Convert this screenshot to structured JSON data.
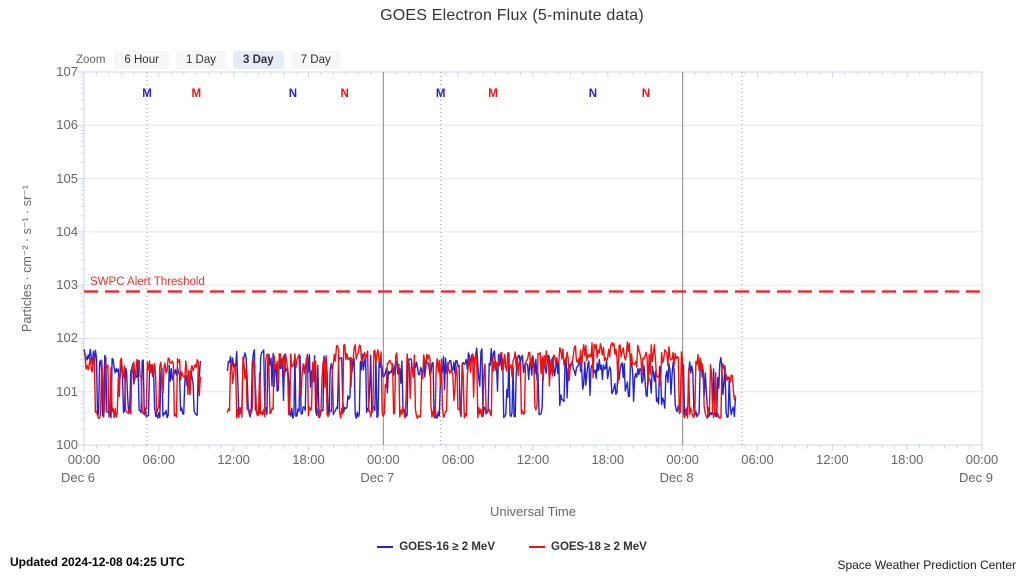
{
  "title": "GOES Electron Flux (5-minute data)",
  "toolbar": {
    "zoom_label": "Zoom",
    "buttons": [
      {
        "label": "6 Hour",
        "selected": false
      },
      {
        "label": "1 Day",
        "selected": false
      },
      {
        "label": "3 Day",
        "selected": true
      },
      {
        "label": "7 Day",
        "selected": false
      }
    ]
  },
  "y_axis": {
    "title": "Particles · cm⁻² · s⁻¹ · sr⁻¹",
    "tick_labels": [
      "107",
      "106",
      "105",
      "104",
      "103",
      "102",
      "101",
      "100"
    ]
  },
  "x_axis": {
    "title": "Universal Time",
    "tick_labels": [
      "00:00",
      "06:00",
      "12:00",
      "18:00",
      "00:00",
      "06:00",
      "12:00",
      "18:00",
      "00:00",
      "06:00",
      "12:00",
      "18:00",
      "00:00"
    ],
    "date_labels": [
      "Dec 6",
      "",
      "",
      "",
      "Dec 7",
      "",
      "",
      "",
      "Dec 8",
      "",
      "",
      "",
      "Dec 9"
    ]
  },
  "threshold": {
    "label": "SWPC Alert Threshold",
    "log_value": 2.88,
    "color": "#e83232"
  },
  "markers": [
    {
      "letter": "M",
      "color": "#2424cf",
      "hour": 5.05,
      "dotted_line": true
    },
    {
      "letter": "M",
      "color": "#ea1212",
      "hour": 9.0,
      "dotted_line": false
    },
    {
      "letter": "N",
      "color": "#2424cf",
      "hour": 16.75,
      "dotted_line": false
    },
    {
      "letter": "N",
      "color": "#ea1212",
      "hour": 20.9,
      "dotted_line": false
    },
    {
      "letter": "M",
      "color": "#2424cf",
      "hour": 28.6,
      "dotted_line": true
    },
    {
      "letter": "M",
      "color": "#ea1212",
      "hour": 32.8,
      "dotted_line": false
    },
    {
      "letter": "N",
      "color": "#2424cf",
      "hour": 40.8,
      "dotted_line": false
    },
    {
      "letter": "N",
      "color": "#ea1212",
      "hour": 45.05,
      "dotted_line": false
    }
  ],
  "legend": [
    {
      "label": "GOES-16 ≥ 2 MeV",
      "color": "#2424cf"
    },
    {
      "label": "GOES-18 ≥ 2 MeV",
      "color": "#ea1212"
    }
  ],
  "footer": {
    "updated": "Updated 2024-12-08 04:25 UTC",
    "credit": "Space Weather Prediction Center"
  },
  "chart_data": {
    "type": "line",
    "title": "GOES Electron Flux (5-minute data)",
    "xlabel": "Universal Time",
    "ylabel": "Particles · cm⁻² · s⁻¹ · sr⁻¹",
    "x_unit": "hours since Dec 6 00:00 UT",
    "x_range": [
      0,
      72
    ],
    "y_scale": "log10",
    "y_range_log": [
      0,
      7
    ],
    "grid": "horizontal-decades",
    "legend_position": "bottom-center",
    "data_end_hour": 52.3,
    "gap_hours": [
      9.35,
      11.45
    ],
    "day_plotlines_hours": [
      24,
      48
    ],
    "dotted_plotlines_hours": [
      5.05,
      28.6,
      52.75
    ],
    "floor_log10": 0.5,
    "sample_step_hours": 0.0833,
    "seed": 1337,
    "threshold_log": 2.88,
    "series": [
      {
        "name": "GOES-16 ≥ 2 MeV",
        "color": "#2424cf",
        "anchor_step_hours": 2,
        "upper_envelope_log10": [
          1.95,
          1.78,
          1.7,
          1.66,
          1.62,
          1.7,
          1.85,
          1.9,
          1.78,
          1.82,
          1.76,
          1.82,
          1.76,
          1.7,
          1.74,
          1.8,
          1.94,
          1.82,
          1.76,
          1.8,
          1.72,
          1.68,
          1.62,
          1.58,
          1.7,
          1.74,
          1.7
        ],
        "lower_envelope_log10": [
          0.5,
          0.5,
          0.5,
          0.5,
          0.5,
          0.5,
          0.5,
          0.5,
          0.5,
          0.5,
          0.5,
          0.5,
          0.5,
          0.5,
          0.5,
          0.5,
          0.5,
          0.5,
          0.5,
          0.7,
          1.0,
          0.95,
          0.9,
          0.75,
          0.5,
          0.5,
          0.5
        ],
        "dip_probability": [
          0.14,
          0.16,
          0.15,
          0.14,
          0.14,
          0.13,
          0.12,
          0.11,
          0.12,
          0.11,
          0.12,
          0.11,
          0.13,
          0.14,
          0.13,
          0.12,
          0.1,
          0.11,
          0.1,
          0.09,
          0.08,
          0.08,
          0.09,
          0.1,
          0.13,
          0.14,
          0.15
        ]
      },
      {
        "name": "GOES-18 ≥ 2 MeV",
        "color": "#ea1212",
        "anchor_step_hours": 2,
        "upper_envelope_log10": [
          1.88,
          1.72,
          1.7,
          1.72,
          1.7,
          1.72,
          1.75,
          1.8,
          1.82,
          1.85,
          1.95,
          2.0,
          1.92,
          1.82,
          1.78,
          1.76,
          1.8,
          1.84,
          1.86,
          1.92,
          1.98,
          2.04,
          2.05,
          1.98,
          1.88,
          1.72,
          1.6
        ],
        "lower_envelope_log10": [
          0.5,
          0.5,
          0.5,
          0.5,
          0.5,
          0.5,
          0.5,
          0.5,
          0.5,
          0.5,
          0.5,
          0.5,
          0.5,
          0.5,
          0.5,
          0.5,
          0.5,
          0.5,
          0.6,
          0.9,
          1.55,
          1.6,
          1.5,
          1.1,
          0.5,
          0.5,
          0.5
        ],
        "dip_probability": [
          0.12,
          0.14,
          0.13,
          0.12,
          0.13,
          0.12,
          0.1,
          0.1,
          0.09,
          0.08,
          0.07,
          0.08,
          0.12,
          0.13,
          0.12,
          0.11,
          0.1,
          0.09,
          0.08,
          0.06,
          0.04,
          0.03,
          0.03,
          0.05,
          0.12,
          0.14,
          0.15
        ]
      }
    ]
  }
}
